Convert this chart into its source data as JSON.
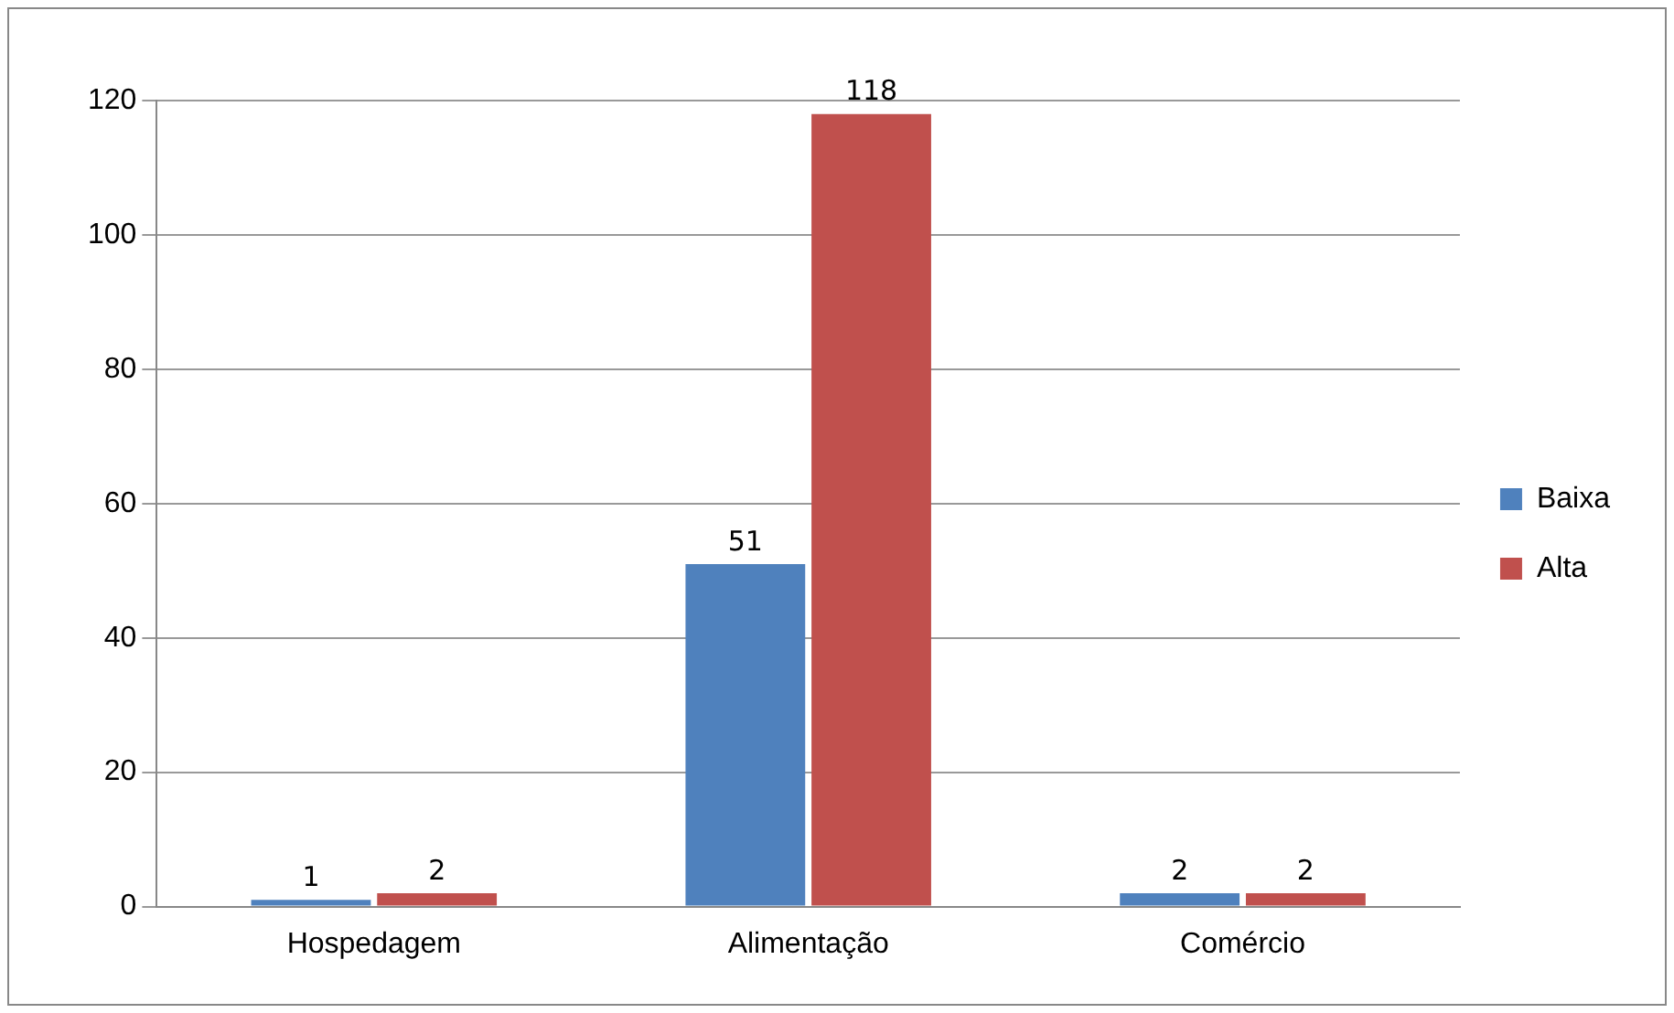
{
  "chart_data": {
    "type": "bar",
    "categories": [
      "Hospedagem",
      "Alimentação",
      "Comércio"
    ],
    "series": [
      {
        "name": "Baixa",
        "color": "#4f81bd",
        "values": [
          1,
          51,
          2
        ]
      },
      {
        "name": "Alta",
        "color": "#c0504d",
        "values": [
          2,
          118,
          2
        ]
      }
    ],
    "ylim": [
      0,
      120
    ],
    "yticks": [
      0,
      20,
      40,
      60,
      80,
      100,
      120
    ],
    "grid": "y",
    "legend": "right",
    "data_labels": true
  }
}
